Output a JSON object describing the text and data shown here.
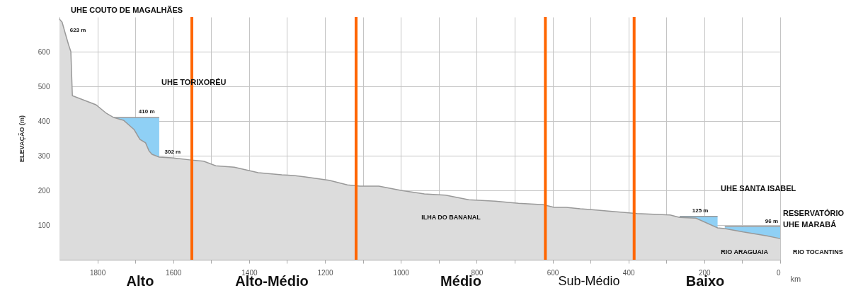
{
  "chart_data": {
    "type": "area",
    "ylabel": "ELEVAÇÃO (m)",
    "xlabel": "km",
    "x": [
      1900,
      1893,
      1884,
      1876,
      1870,
      1866,
      1804,
      1776,
      1757,
      1731,
      1703,
      1688,
      1673,
      1664,
      1656,
      1637,
      1604,
      1557,
      1520,
      1488,
      1439,
      1376,
      1314,
      1282,
      1252,
      1189,
      1141,
      1108,
      1058,
      1000,
      938,
      882,
      821,
      751,
      690,
      626,
      596,
      564,
      527,
      502,
      377,
      290,
      265,
      222,
      165,
      146,
      97,
      35,
      0
    ],
    "series": [
      {
        "color": "#8fd0f5",
        "x": [
          1757,
          1637
        ],
        "values": [
          410,
          410
        ]
      },
      {
        "color": "#8fd0f5",
        "x": [
          265,
          165
        ],
        "values": [
          125,
          125
        ]
      },
      {
        "color": "#8fd0f5",
        "x": [
          146,
          0
        ],
        "values": [
          96,
          96
        ]
      },
      {
        "color": "#dcdcdc",
        "values": [
          694,
          685,
          650,
          620,
          600,
          473,
          447,
          422,
          410,
          402,
          375,
          347,
          337,
          314,
          304,
          296,
          294,
          288,
          284,
          271,
          267,
          251,
          245,
          243,
          239,
          229,
          216,
          212,
          212,
          200,
          190,
          186,
          173,
          169,
          163,
          159,
          151,
          151,
          147,
          145,
          133,
          129,
          122,
          120,
          92,
          90,
          80,
          69,
          61
        ]
      }
    ],
    "xlim": [
      1900,
      0
    ],
    "xticks": [
      1800,
      {
        "value": 1700,
        "label": null
      },
      1600,
      {
        "value": 1500,
        "label": null
      },
      1400,
      {
        "value": 1300,
        "label": null
      },
      1200,
      {
        "value": 1100,
        "label": null
      },
      1000,
      {
        "value": 900,
        "label": null
      },
      800,
      {
        "value": 700,
        "label": null
      },
      600,
      {
        "value": 500,
        "label": null
      },
      400,
      {
        "value": 300,
        "label": null
      },
      200,
      {
        "value": 100,
        "label": null
      },
      0
    ],
    "ylim": [
      0,
      700
    ],
    "yticks": [
      100,
      200,
      300,
      400,
      500,
      600
    ],
    "grid": true,
    "ref_lines": [
      {
        "axis": "x",
        "value": 1551,
        "color": "#ff6600"
      },
      {
        "axis": "x",
        "value": 1118,
        "color": "#ff6600"
      },
      {
        "axis": "x",
        "value": 619,
        "color": "#ff6600"
      },
      {
        "axis": "x",
        "value": 385,
        "color": "#ff6600"
      }
    ],
    "annotations": [
      "UHE COUTO DE MAGALHÃES",
      {
        "text": "623 m",
        "x": 1880,
        "y": 623
      },
      "UHE TORIXORÉU",
      {
        "text": "410 m",
        "x": 1634,
        "y": 410
      },
      {
        "text": "302 m",
        "x": 1634,
        "y": 302
      },
      "UHE SANTA ISABEL",
      {
        "text": "125 m",
        "x": 156,
        "y": 125
      },
      {
        "text": "96 m",
        "x": 0,
        "y": 96
      },
      {
        "text": "RESERVATÓRIO\nUHE  MARABÁ",
        "x": 0,
        "y": 96
      },
      "ILHA DO BANANAL",
      "RIO ARAGUAIA",
      "RIO TOCANTINS",
      "Alto",
      "Alto-Médio",
      "Médio",
      "Sub-Médio",
      "Baixo"
    ]
  }
}
